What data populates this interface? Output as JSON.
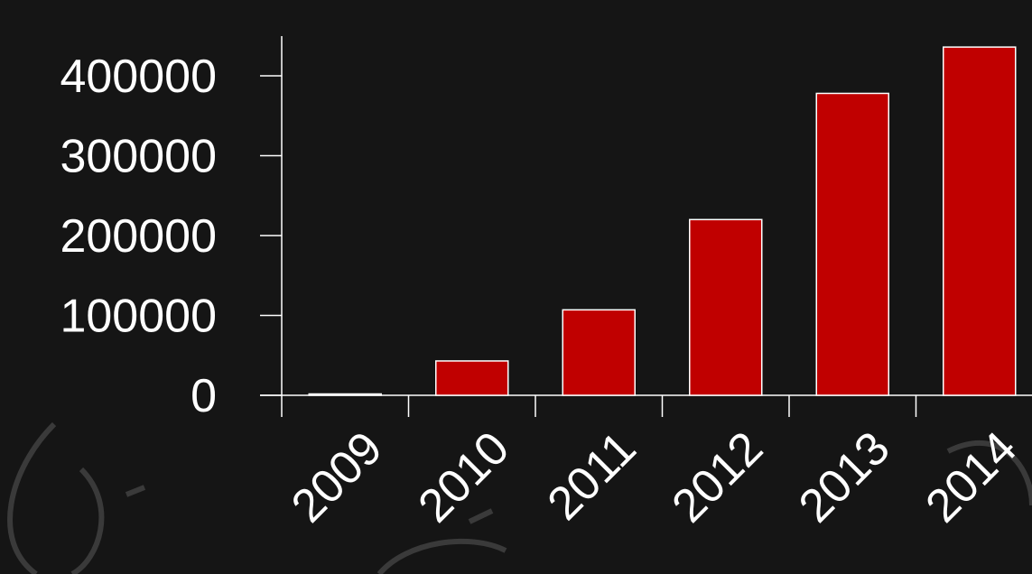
{
  "chart_data": {
    "type": "bar",
    "categories": [
      "2009",
      "2010",
      "2011",
      "2012",
      "2013",
      "2014"
    ],
    "values": [
      1000,
      43000,
      107000,
      220000,
      378000,
      436000
    ],
    "y_ticks": [
      "0",
      "100000",
      "200000",
      "300000",
      "400000"
    ],
    "ylim": [
      0,
      450000
    ],
    "grid": false,
    "legend": "none",
    "bar_color": "#c00000",
    "bar_outline_color": "#ffffff",
    "axis_color": "#ffffff",
    "text_color": "#ffffff",
    "background_color": "#151515"
  }
}
